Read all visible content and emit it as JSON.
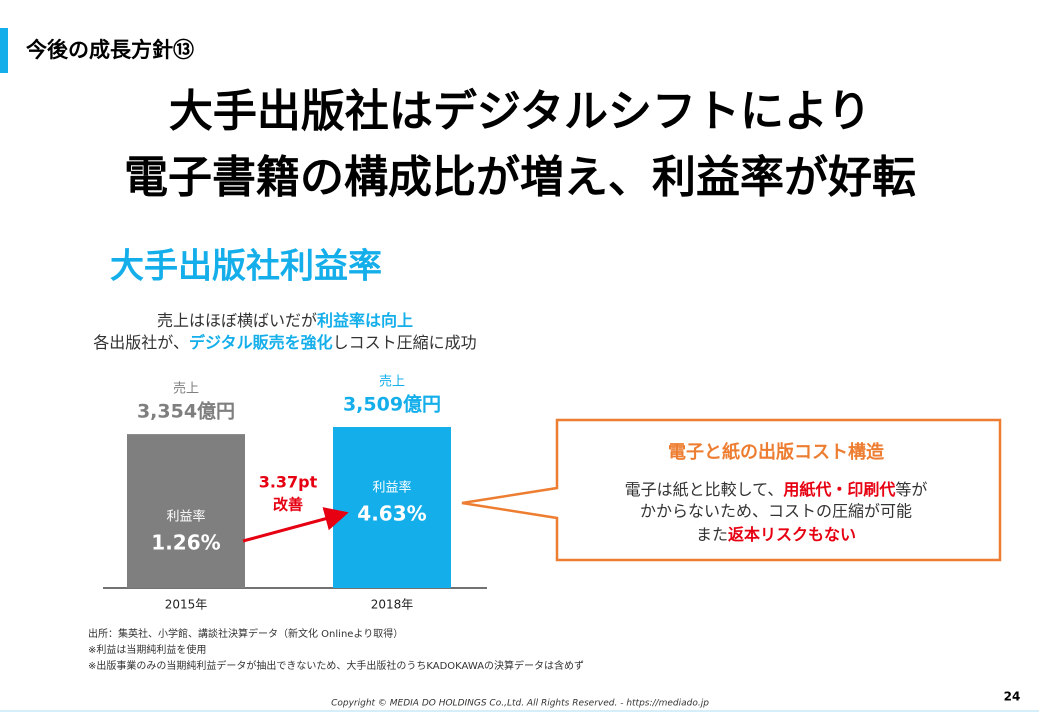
{
  "header": {
    "section": "今後の成長方針⑬",
    "title_lines": [
      "大手出版社はデジタルシフトにより",
      "電子書籍の構成比が増え、利益率が好転"
    ]
  },
  "chart_data": {
    "type": "bar",
    "title": "大手出版社利益率",
    "subtitle_lines": [
      [
        "売上はほぼ横ばいだが",
        "利益率は向上"
      ],
      [
        "各出版社が、",
        "デジタル販売を強化",
        "しコスト圧縮に成功"
      ]
    ],
    "categories": [
      "2015年",
      "2018年"
    ],
    "series": [
      {
        "name": "売上",
        "colors": [
          "#7f7f7f",
          "#14aeea"
        ],
        "values": [
          3354,
          3509
        ],
        "value_labels": [
          "3,354億円",
          "3,509億円"
        ]
      },
      {
        "name": "利益率",
        "values": [
          1.26,
          4.63
        ],
        "value_labels": [
          "1.26%",
          "4.63%"
        ]
      }
    ],
    "annotation": {
      "value": 3.37,
      "label": "3.37pt",
      "text": "改善"
    },
    "sources": [
      "出所：集英社、小学館、講談社決算データ（新文化 Onlineより取得）",
      "※利益は当期純利益を使用",
      "※出版事業のみの当期純利益データが抽出できないため、大手出版社のうちKADOKAWAの決算データは含めず"
    ]
  },
  "callout": {
    "title": "電子と紙の出版コスト構造",
    "lines": [
      [
        "電子は紙と比較して、",
        "用紙代・印刷代",
        "等が"
      ],
      [
        "かからないため、コストの圧縮が可能"
      ],
      [
        "また",
        "返本リスクもない"
      ]
    ]
  },
  "footer": {
    "copyright": "Copyright © MEDIA DO HOLDINGS Co.,Ltd.  All Rights Reserved.  - https://mediado.jp",
    "page": "24"
  }
}
